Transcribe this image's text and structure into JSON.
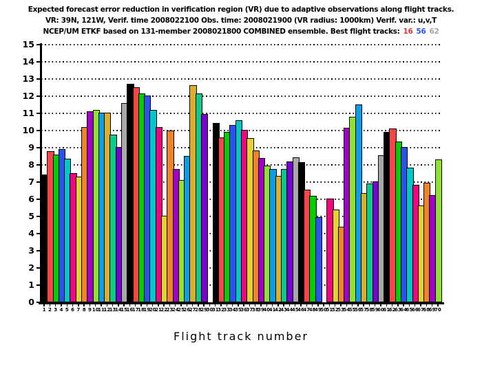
{
  "title": {
    "line1": "Expected forecast error reduction in verification region (VR) due to adaptive observations along flight tracks.",
    "line2": "VR: 39N, 121W, Verif. time 2008022100 Obs. time: 2008021900 (VR radius: 1000km)  Verif. var.: u,v,T",
    "line3_prefix": "NCEP/UM ETKF based on 131-member 2008021800 COMBINED ensemble.  Best flight tracks:",
    "best_tracks": [
      {
        "label": "16",
        "color": "#e03434"
      },
      {
        "label": "56",
        "color": "#2a52f0"
      },
      {
        "label": "62",
        "color": "#a4a4a4"
      }
    ]
  },
  "chart_data": {
    "type": "bar",
    "title": "Expected forecast error reduction in VR due to adaptive observations along flight tracks",
    "xlabel": "Flight track number",
    "ylabel": "",
    "ylim": [
      0,
      15
    ],
    "ytick_interval": 1,
    "grid": "horizontal-dotted",
    "legend_position": "none",
    "categories": [
      1,
      2,
      3,
      4,
      5,
      6,
      7,
      8,
      9,
      10,
      11,
      12,
      13,
      14,
      15,
      16,
      17,
      18,
      19,
      20,
      21,
      22,
      23,
      24,
      25,
      26,
      27,
      28,
      29,
      30,
      31,
      32,
      33,
      34,
      35,
      36,
      37,
      38,
      39,
      40,
      41,
      42,
      43,
      44,
      45,
      46,
      47,
      48,
      49,
      50,
      51,
      52,
      53,
      54,
      55,
      56,
      57,
      58,
      59,
      60,
      61,
      62,
      63,
      64,
      65,
      66,
      67,
      68,
      69,
      70
    ],
    "values": [
      7.45,
      8.8,
      8.6,
      8.9,
      8.35,
      7.5,
      7.3,
      10.2,
      11.1,
      11.2,
      11.05,
      11.05,
      9.75,
      9.05,
      11.6,
      12.7,
      12.5,
      12.15,
      12.05,
      11.2,
      10.2,
      5.05,
      10.0,
      7.75,
      7.1,
      8.5,
      12.65,
      12.15,
      10.95,
      0,
      10.45,
      9.6,
      9.9,
      10.3,
      10.6,
      10.05,
      9.55,
      8.85,
      8.4,
      7.95,
      7.75,
      7.35,
      7.75,
      8.2,
      8.45,
      8.15,
      6.55,
      6.2,
      4.95,
      0,
      6.05,
      5.4,
      4.4,
      10.15,
      10.8,
      11.5,
      6.35,
      6.9,
      7.05,
      8.55,
      9.9,
      10.1,
      9.35,
      9.05,
      7.85,
      6.85,
      5.65,
      6.95,
      6.25,
      8.3
    ],
    "palette_cycle": [
      "#000000",
      "#f94545",
      "#00ce00",
      "#2a52f0",
      "#00c8c8",
      "#f2047e",
      "#e3d332",
      "#f08428",
      "#a000c8",
      "#8fe32f",
      "#0b9eeb",
      "#dcae2e",
      "#0acb87",
      "#7a00d2",
      "#a8a8a8"
    ],
    "palette_cycle_names": [
      "black",
      "red",
      "green",
      "blue",
      "cyan",
      "deeppink",
      "yellow",
      "orange",
      "magenta",
      "yellowgreen",
      "deepskyblue",
      "goldenrod",
      "springgreen",
      "darkviolet",
      "gray"
    ]
  }
}
